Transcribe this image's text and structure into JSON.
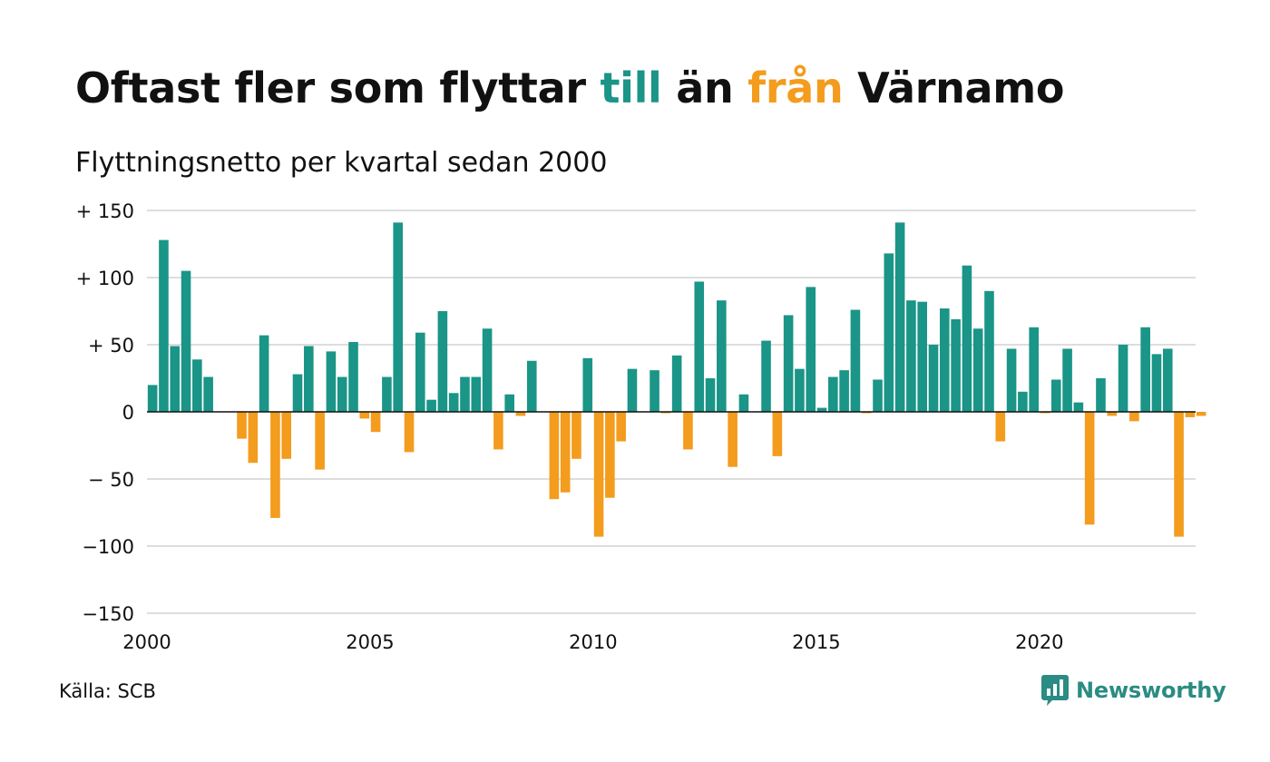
{
  "title": {
    "part1": "Oftast fler som flyttar ",
    "highlight_in": "till",
    "part2": " än ",
    "highlight_out": "från",
    "part3": " Värnamo"
  },
  "subtitle": "Flyttningsnetto per kvartal sedan 2000",
  "source": "Källa: SCB",
  "logo": {
    "text": "Newsworthy",
    "icon": "chart-bubble-icon"
  },
  "colors": {
    "positive": "#1a9587",
    "negative": "#f39c1d",
    "grid": "#dddddd",
    "baseline": "#111111",
    "brand": "#2a8c83"
  },
  "chart_data": {
    "type": "bar",
    "title": "Oftast fler som flyttar till än från Värnamo",
    "subtitle": "Flyttningsnetto per kvartal sedan 2000",
    "xlabel": "",
    "ylabel": "",
    "ylim": [
      -150,
      150
    ],
    "x_start": "2000 Q1",
    "frequency": "quarterly",
    "xticks": [
      "2000",
      "2005",
      "2010",
      "2015",
      "2020"
    ],
    "yticks": [
      {
        "value": 150,
        "label": "+ 150"
      },
      {
        "value": 100,
        "label": "+ 100"
      },
      {
        "value": 50,
        "label": "+  50"
      },
      {
        "value": 0,
        "label": "0"
      },
      {
        "value": -50,
        "label": "− 50"
      },
      {
        "value": -100,
        "label": "−100"
      },
      {
        "value": -150,
        "label": "−150"
      }
    ],
    "grid": true,
    "legend": "none",
    "values": [
      20,
      128,
      49,
      105,
      39,
      26,
      0,
      0,
      -20,
      -38,
      57,
      -79,
      -35,
      28,
      49,
      -43,
      45,
      26,
      52,
      -5,
      -15,
      26,
      141,
      -30,
      59,
      9,
      75,
      14,
      26,
      26,
      62,
      -28,
      13,
      -3,
      38,
      0,
      -65,
      -60,
      -35,
      40,
      -93,
      -64,
      -22,
      32,
      0,
      31,
      -1,
      42,
      -28,
      97,
      25,
      83,
      -41,
      13,
      0,
      53,
      -33,
      72,
      32,
      93,
      3,
      26,
      31,
      76,
      -1,
      24,
      118,
      141,
      83,
      82,
      50,
      77,
      69,
      109,
      62,
      90,
      -22,
      47,
      15,
      63,
      -1,
      24,
      47,
      7,
      -84,
      25,
      -3,
      50,
      -7,
      63,
      43,
      47,
      -93,
      -4,
      -3
    ]
  }
}
